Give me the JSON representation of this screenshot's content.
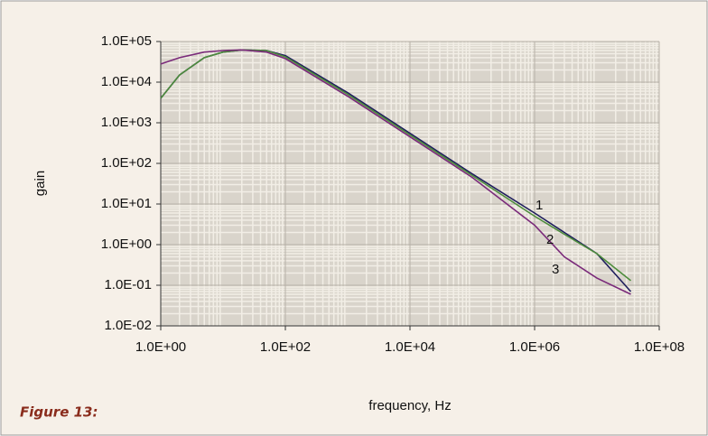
{
  "chart_data": {
    "type": "line",
    "log_x": true,
    "log_y": true,
    "grid": true,
    "xlabel": "frequency, Hz",
    "ylabel": "gain",
    "caption": "Figure 13:",
    "xlim": [
      1,
      100000000
    ],
    "xticks": [
      {
        "value": 1,
        "label": "1.0E+00"
      },
      {
        "value": 100,
        "label": "1.0E+02"
      },
      {
        "value": 10000,
        "label": "1.0E+04"
      },
      {
        "value": 1000000,
        "label": "1.0E+06"
      },
      {
        "value": 100000000,
        "label": "1.0E+08"
      }
    ],
    "ylim": [
      0.01,
      100000
    ],
    "yticks": [
      {
        "value": 0.01,
        "label": "1.0E-02"
      },
      {
        "value": 0.1,
        "label": "1.0E-01"
      },
      {
        "value": 1,
        "label": "1.0E+00"
      },
      {
        "value": 10,
        "label": "1.0E+01"
      },
      {
        "value": 100,
        "label": "1.0E+02"
      },
      {
        "value": 1000,
        "label": "1.0E+03"
      },
      {
        "value": 10000,
        "label": "1.0E+04"
      },
      {
        "value": 100000,
        "label": "1.0E+05"
      }
    ],
    "x": [
      1,
      2,
      5,
      10,
      20,
      50,
      100,
      1000,
      10000,
      100000,
      1000000,
      3000000,
      10000000,
      35000000
    ],
    "series": [
      {
        "color": "#1e1e5c",
        "values": [
          4000,
          15000,
          40000,
          55000,
          62000,
          60000,
          45000,
          5500,
          550,
          55,
          6,
          2,
          0.6,
          0.07
        ]
      },
      {
        "color": "#4d8c3c",
        "values": [
          4000,
          15000,
          40000,
          55000,
          62000,
          60000,
          42000,
          5000,
          500,
          50,
          5,
          1.8,
          0.6,
          0.13
        ]
      },
      {
        "color": "#7a2a7a",
        "values": [
          28000,
          40000,
          55000,
          60000,
          62000,
          55000,
          38000,
          4500,
          450,
          45,
          3,
          0.5,
          0.15,
          0.06
        ]
      }
    ],
    "annotations": [
      "1",
      "2",
      "3"
    ]
  }
}
